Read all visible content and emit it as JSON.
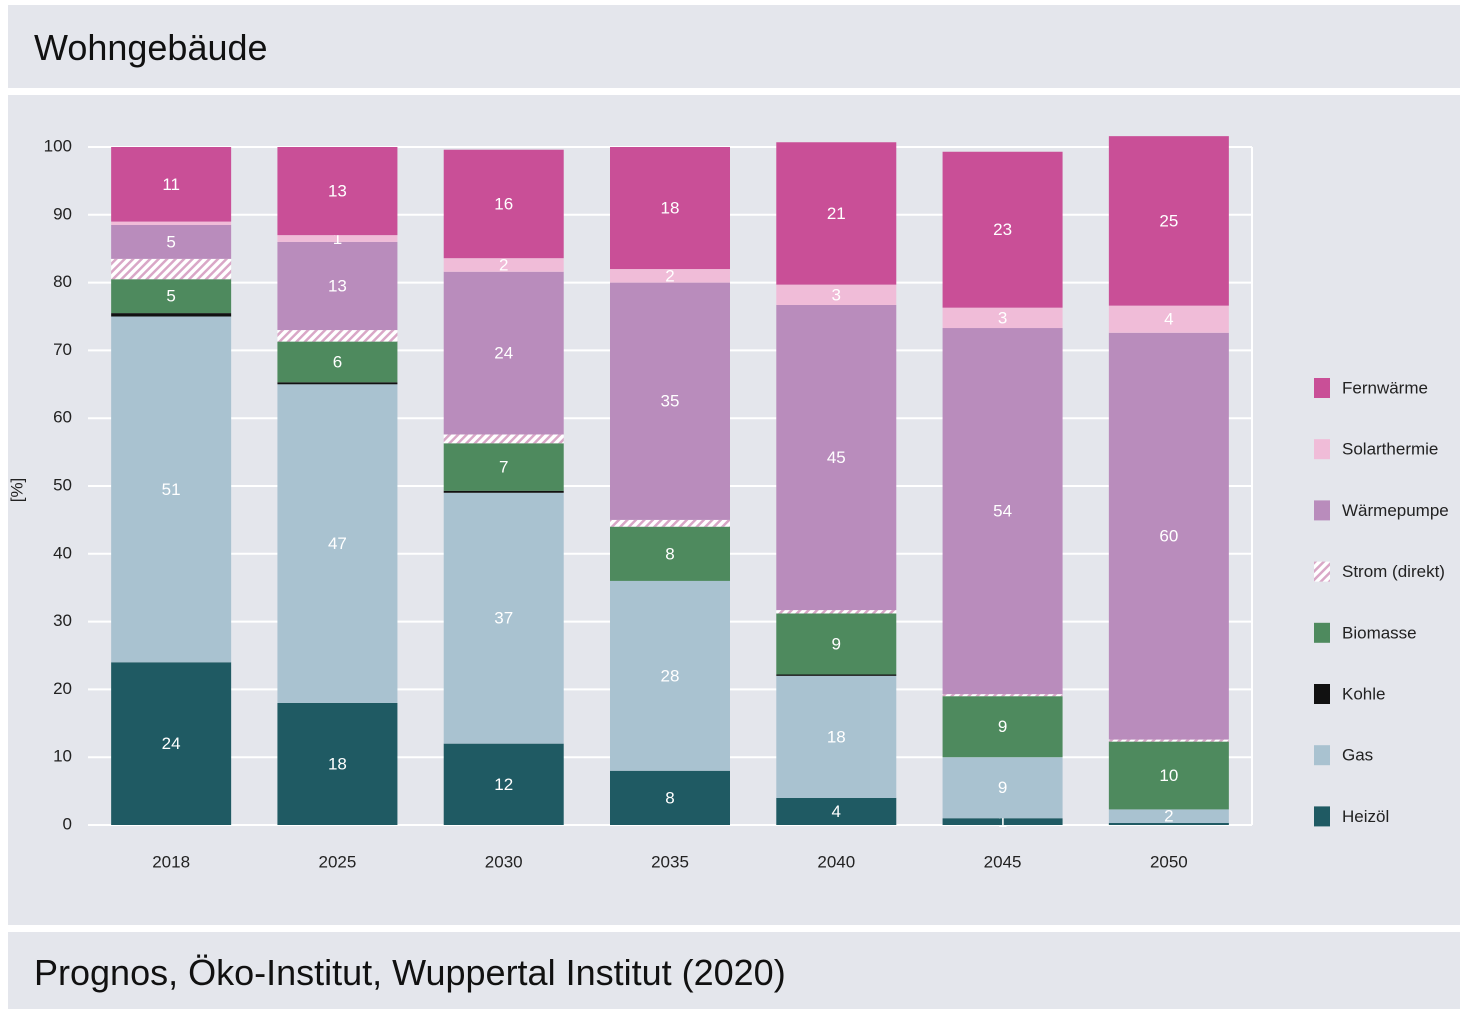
{
  "header": {
    "title": "Wohngebäude"
  },
  "footer": {
    "source": "Prognos, Öko-Institut, Wuppertal Institut (2020)"
  },
  "chart_data": {
    "type": "stacked_bar",
    "y_label": "[%]",
    "categories": [
      "2018",
      "2025",
      "2030",
      "2035",
      "2040",
      "2045",
      "2050"
    ],
    "ylim": [
      0,
      100
    ],
    "yticks": [
      0,
      10,
      20,
      30,
      40,
      50,
      60,
      70,
      80,
      90,
      100
    ],
    "grid": true,
    "legend": "right",
    "series": [
      {
        "name": "Heizöl",
        "color": "#1f5a63",
        "labels": true,
        "values": [
          24,
          18,
          12,
          8,
          4,
          1,
          0.3
        ]
      },
      {
        "name": "Gas",
        "color": "#a9c2d0",
        "labels": true,
        "values": [
          51,
          47,
          37,
          28,
          18,
          9,
          2
        ]
      },
      {
        "name": "Kohle",
        "color": "#111111",
        "labels": false,
        "values": [
          0.5,
          0.3,
          0.3,
          0,
          0.2,
          0,
          0
        ]
      },
      {
        "name": "Biomasse",
        "color": "#4e8a5e",
        "labels": true,
        "values": [
          5,
          6,
          7,
          8,
          9,
          9,
          10
        ]
      },
      {
        "name": "Strom (direkt)",
        "color": "#d9a7c7",
        "pattern": "hatch",
        "labels": false,
        "values": [
          3,
          1.7,
          1.3,
          1,
          0.5,
          0.3,
          0.3
        ]
      },
      {
        "name": "Wärmepumpe",
        "color": "#b98cbc",
        "labels": true,
        "values": [
          5,
          13,
          24,
          35,
          45,
          54,
          60
        ]
      },
      {
        "name": "Solarthermie",
        "color": "#f0bcd8",
        "labels": true,
        "values": [
          0.5,
          1,
          2,
          2,
          3,
          3,
          4
        ]
      },
      {
        "name": "Fernwärme",
        "color": "#c94f97",
        "labels": true,
        "values": [
          11,
          13,
          16,
          18,
          21,
          23,
          25
        ]
      }
    ]
  }
}
